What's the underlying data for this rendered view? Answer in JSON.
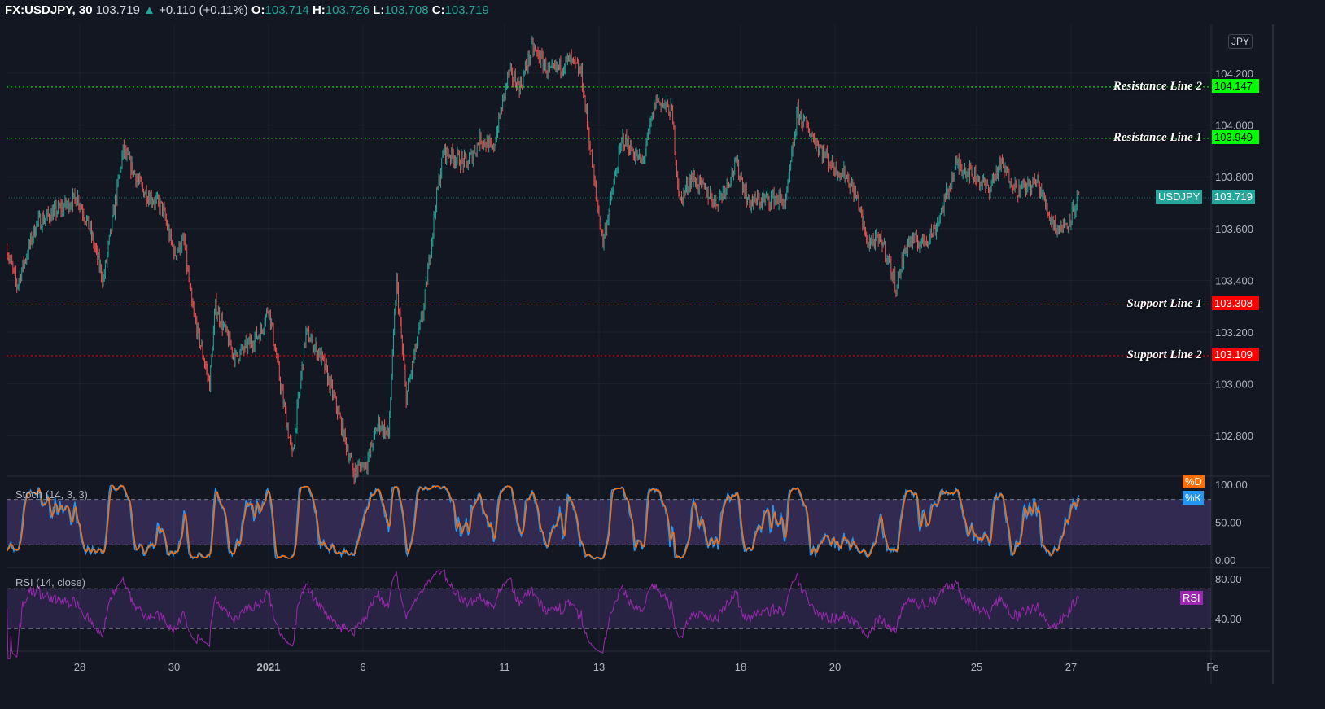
{
  "header": {
    "symbol": "FX:USDJPY, 30",
    "last": "103.719",
    "up_icon": "triangle-up-icon",
    "change": "+0.110 (+0.11%)",
    "o_label": "O:",
    "o": "103.714",
    "h_label": "H:",
    "h": "103.726",
    "l_label": "L:",
    "l": "103.708",
    "c_label": "C:",
    "c": "103.719"
  },
  "currency_button": "JPY",
  "colors": {
    "up": "#26a69a",
    "down": "#ef5350",
    "resistance": "#00ff00",
    "support": "#ff0000",
    "k": "#2196f3",
    "d": "#ff6d00",
    "rsi": "#9c27b0",
    "band": "#7e57c2",
    "bg": "#131722"
  },
  "levels": [
    {
      "name": "Resistance Line 2",
      "value": 104.147,
      "label": "104.147",
      "type": "resistance"
    },
    {
      "name": "Resistance Line 1",
      "value": 103.949,
      "label": "103.949",
      "type": "resistance"
    },
    {
      "name": "Support Line 1",
      "value": 103.308,
      "label": "103.308",
      "type": "support"
    },
    {
      "name": "Support Line 2",
      "value": 103.109,
      "label": "103.109",
      "type": "support"
    }
  ],
  "last_price": {
    "name": "USDJPY",
    "value": 103.719,
    "label": "103.719"
  },
  "stoch": {
    "title": "Stoch (14, 3, 3)",
    "d_label": "%D",
    "k_label": "%K",
    "ticks": [
      "100.00",
      "50.00",
      "0.00"
    ],
    "bands": [
      20,
      80
    ]
  },
  "rsi": {
    "title": "RSI (14, close)",
    "label": "RSI",
    "ticks": [
      "80.00",
      "40.00"
    ],
    "bands": [
      30,
      70
    ]
  },
  "chart_data": {
    "type": "candlestick",
    "interval": "30",
    "ylim": [
      102.65,
      104.35
    ],
    "y_ticks": [
      "104.200",
      "104.000",
      "103.800",
      "103.600",
      "103.400",
      "103.200",
      "103.000",
      "102.800"
    ],
    "x_ticks": [
      {
        "date": "2020-12-28",
        "label": "28"
      },
      {
        "date": "2020-12-30",
        "label": "30"
      },
      {
        "date": "2021-01-04",
        "label": "2021"
      },
      {
        "date": "2021-01-06",
        "label": "6"
      },
      {
        "date": "2021-01-11",
        "label": "11"
      },
      {
        "date": "2021-01-13",
        "label": "13"
      },
      {
        "date": "2021-01-18",
        "label": "18"
      },
      {
        "date": "2021-01-20",
        "label": "20"
      },
      {
        "date": "2021-01-25",
        "label": "25"
      },
      {
        "date": "2021-01-27",
        "label": "27"
      },
      {
        "date": "2021-02-01",
        "label": "Fe"
      }
    ],
    "price_path": [
      [
        "2020-12-23 11",
        103.52
      ],
      [
        "2020-12-23 16",
        103.38
      ],
      [
        "2020-12-24 02",
        103.62
      ],
      [
        "2020-12-24 23",
        103.72
      ],
      [
        "2020-12-28 05",
        103.6
      ],
      [
        "2020-12-28 12",
        103.4
      ],
      [
        "2020-12-28 22",
        103.9
      ],
      [
        "2020-12-29 08",
        103.75
      ],
      [
        "2020-12-29 18",
        103.68
      ],
      [
        "2020-12-30 00",
        103.5
      ],
      [
        "2020-12-30 05",
        103.55
      ],
      [
        "2020-12-30 09",
        103.3
      ],
      [
        "2020-12-30 18",
        103.0
      ],
      [
        "2020-12-30 21",
        103.3
      ],
      [
        "2020-12-31 07",
        103.1
      ],
      [
        "2020-12-31 20",
        103.2
      ],
      [
        "2021-01-04 00",
        103.3
      ],
      [
        "2021-01-04 06",
        103.0
      ],
      [
        "2021-01-04 12",
        102.72
      ],
      [
        "2021-01-04 19",
        103.2
      ],
      [
        "2021-01-05 03",
        103.1
      ],
      [
        "2021-01-05 11",
        102.9
      ],
      [
        "2021-01-05 19",
        102.66
      ],
      [
        "2021-01-06 02",
        102.7
      ],
      [
        "2021-01-06 08",
        102.85
      ],
      [
        "2021-01-06 13",
        102.8
      ],
      [
        "2021-01-06 17",
        103.4
      ],
      [
        "2021-01-06 22",
        102.95
      ],
      [
        "2021-01-07 07",
        103.3
      ],
      [
        "2021-01-07 13",
        103.7
      ],
      [
        "2021-01-07 17",
        103.9
      ],
      [
        "2021-01-08 05",
        103.85
      ],
      [
        "2021-01-08 12",
        103.95
      ],
      [
        "2021-01-08 18",
        103.9
      ],
      [
        "2021-01-11 02",
        104.2
      ],
      [
        "2021-01-11 08",
        104.15
      ],
      [
        "2021-01-11 14",
        104.3
      ],
      [
        "2021-01-11 23",
        104.2
      ],
      [
        "2021-01-12 09",
        104.25
      ],
      [
        "2021-01-12 15",
        104.2
      ],
      [
        "2021-01-12 22",
        103.75
      ],
      [
        "2021-01-13 02",
        103.55
      ],
      [
        "2021-01-13 12",
        103.95
      ],
      [
        "2021-01-13 22",
        103.85
      ],
      [
        "2021-01-14 05",
        104.1
      ],
      [
        "2021-01-14 13",
        104.05
      ],
      [
        "2021-01-14 17",
        103.7
      ],
      [
        "2021-01-14 23",
        103.8
      ],
      [
        "2021-01-15 12",
        103.7
      ],
      [
        "2021-01-15 22",
        103.85
      ],
      [
        "2021-01-18 04",
        103.7
      ],
      [
        "2021-01-18 17",
        103.72
      ],
      [
        "2021-01-18 23",
        103.7
      ],
      [
        "2021-01-19 05",
        104.05
      ],
      [
        "2021-01-19 13",
        103.95
      ],
      [
        "2021-01-19 22",
        103.85
      ],
      [
        "2021-01-20 06",
        103.8
      ],
      [
        "2021-01-20 12",
        103.7
      ],
      [
        "2021-01-20 16",
        103.55
      ],
      [
        "2021-01-21 00",
        103.55
      ],
      [
        "2021-01-21 07",
        103.38
      ],
      [
        "2021-01-21 13",
        103.55
      ],
      [
        "2021-01-21 21",
        103.55
      ],
      [
        "2021-01-22 03",
        103.6
      ],
      [
        "2021-01-22 14",
        103.85
      ],
      [
        "2021-01-25 00",
        103.8
      ],
      [
        "2021-01-25 06",
        103.75
      ],
      [
        "2021-01-25 12",
        103.85
      ],
      [
        "2021-01-25 21",
        103.75
      ],
      [
        "2021-01-26 07",
        103.78
      ],
      [
        "2021-01-26 13",
        103.65
      ],
      [
        "2021-01-26 17",
        103.6
      ],
      [
        "2021-01-26 22",
        103.62
      ],
      [
        "2021-01-27 04",
        103.72
      ]
    ]
  }
}
